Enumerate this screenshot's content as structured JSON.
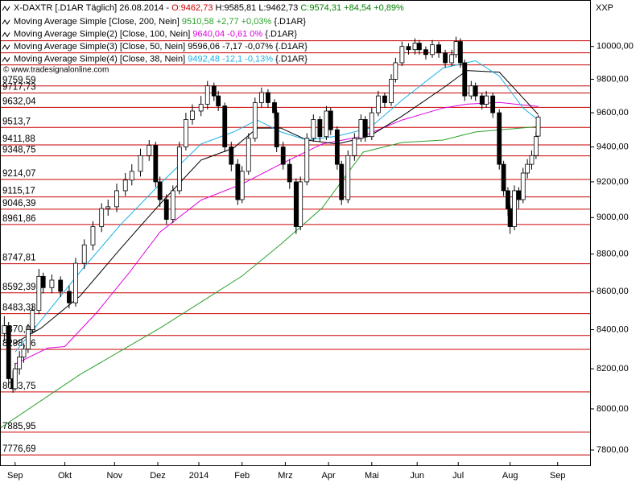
{
  "chart_data": {
    "type": "candlestick",
    "header": {
      "symbol": "X-DAXTR [.D1AR  Täglich] 26.08.2014 -",
      "open": "O:9462,73",
      "high_low": "H:9585,81 L:9462,73",
      "change": "C:9574,31 +84,54 +0,89%"
    },
    "watermark": "© www.tradesignalonline.com",
    "axis_code": "XXP",
    "legend_suffix": "{.D1AR}",
    "log_scale": true,
    "ylim": [
      7727,
      10290
    ],
    "yticks": [
      {
        "value": 7800,
        "label": "7800,00"
      },
      {
        "value": 8000,
        "label": "8000,00"
      },
      {
        "value": 8200,
        "label": "8200,00"
      },
      {
        "value": 8400,
        "label": "8400,00"
      },
      {
        "value": 8600,
        "label": "8600,00"
      },
      {
        "value": 8800,
        "label": "8800,00"
      },
      {
        "value": 9000,
        "label": "9000,00"
      },
      {
        "value": 9200,
        "label": "9200,00"
      },
      {
        "value": 9400,
        "label": "9400,00"
      },
      {
        "value": 9600,
        "label": "9600,00"
      },
      {
        "value": 9800,
        "label": "9800,00"
      },
      {
        "value": 10000,
        "label": "10000,00"
      }
    ],
    "xlim": [
      0,
      273
    ],
    "xticks": [
      {
        "value": 7,
        "label": "Sep"
      },
      {
        "value": 30,
        "label": "Okt"
      },
      {
        "value": 53,
        "label": "Nov"
      },
      {
        "value": 73,
        "label": "Dez"
      },
      {
        "value": 92,
        "label": "2014"
      },
      {
        "value": 112,
        "label": "Feb"
      },
      {
        "value": 132,
        "label": "Mrz"
      },
      {
        "value": 152,
        "label": "Apr"
      },
      {
        "value": 172,
        "label": "Mai"
      },
      {
        "value": 193,
        "label": "Jun"
      },
      {
        "value": 212,
        "label": "Jul"
      },
      {
        "value": 236,
        "label": "Aug"
      },
      {
        "value": 258,
        "label": "Sep"
      }
    ],
    "levels": [
      10035,
      9961,
      9887,
      9759.59,
      9717.73,
      9632.04,
      9513.7,
      9411.88,
      9348.75,
      9214.07,
      9115.17,
      9046.39,
      8961.86,
      8747.81,
      8592.39,
      8483.33,
      8370.03,
      8298.56,
      8083.75,
      7885.95,
      7776.69
    ],
    "level_labels": [
      null,
      null,
      null,
      "9759,59",
      "9717,73",
      "9632,04",
      "9513,7",
      "9411,88",
      "9348,75",
      "9214,07",
      "9115,17",
      "9046,39",
      "8961,86",
      "8747,81",
      "8592,39",
      "8483,33",
      "8370,03",
      "8298,56",
      "8083,75",
      "7885,95",
      "7776,69"
    ],
    "level_color": "#cc0000",
    "x": [
      2,
      4,
      6,
      7,
      9,
      11,
      13,
      15,
      18,
      20,
      24,
      28,
      32,
      35,
      39,
      43,
      47,
      50,
      54,
      58,
      61,
      65,
      69,
      72,
      74,
      77,
      80,
      83,
      86,
      89,
      93,
      96,
      99,
      101,
      104,
      107,
      110,
      112,
      115,
      118,
      121,
      124,
      127,
      128,
      131,
      134,
      137,
      139,
      142,
      145,
      148,
      151,
      153,
      156,
      158,
      161,
      164,
      167,
      169,
      172,
      175,
      178,
      181,
      183,
      186,
      189,
      192,
      194,
      197,
      200,
      203,
      206,
      209,
      211,
      213,
      215,
      218,
      220,
      223,
      225,
      228,
      231,
      233,
      235,
      236,
      238,
      240,
      242,
      244,
      246,
      248,
      249
    ],
    "open": [
      8380,
      8420,
      8150,
      8100,
      8200,
      8260,
      8300,
      8400,
      8500,
      8680,
      8620,
      8660,
      8600,
      8540,
      8750,
      8850,
      8950,
      9050,
      9060,
      9150,
      9210,
      9260,
      9350,
      9410,
      9200,
      9100,
      8990,
      9150,
      9400,
      9560,
      9610,
      9650,
      9760,
      9700,
      9640,
      9400,
      9300,
      9100,
      9260,
      9450,
      9660,
      9720,
      9660,
      9600,
      9400,
      9300,
      9200,
      8950,
      9200,
      9450,
      9560,
      9460,
      9610,
      9500,
      9300,
      9100,
      9350,
      9450,
      9560,
      9460,
      9600,
      9700,
      9660,
      9800,
      9900,
      10000,
      9980,
      10020,
      9980,
      9950,
      10010,
      9960,
      9900,
      9950,
      10030,
      9900,
      9700,
      9760,
      9700,
      9650,
      9700,
      9600,
      9300,
      9150,
      9050,
      8950,
      9150,
      9100,
      9250,
      9300,
      9350,
      9462.73
    ],
    "high": [
      8470,
      8440,
      8190,
      8230,
      8290,
      8330,
      8430,
      8530,
      8720,
      8700,
      8690,
      8680,
      8630,
      8780,
      8880,
      8980,
      9080,
      9100,
      9190,
      9250,
      9300,
      9390,
      9440,
      9430,
      9230,
      9130,
      9180,
      9430,
      9600,
      9650,
      9700,
      9790,
      9780,
      9730,
      9660,
      9430,
      9330,
      9290,
      9480,
      9690,
      9750,
      9740,
      9680,
      9620,
      9430,
      9330,
      9220,
      9230,
      9480,
      9590,
      9580,
      9640,
      9630,
      9520,
      9320,
      9380,
      9480,
      9590,
      9580,
      9630,
      9730,
      9720,
      9830,
      9930,
      10030,
      10020,
      10050,
      10040,
      10000,
      10040,
      10030,
      9980,
      9980,
      10060,
      10050,
      9920,
      9790,
      9780,
      9720,
      9730,
      9720,
      9620,
      9320,
      9170,
      9070,
      9180,
      9170,
      9280,
      9330,
      9380,
      9490,
      9585.81
    ],
    "low": [
      8340,
      8120,
      8080,
      8090,
      8170,
      8230,
      8280,
      8380,
      8480,
      8590,
      8590,
      8570,
      8510,
      8520,
      8720,
      8820,
      8920,
      9010,
      9030,
      9120,
      9180,
      9230,
      9320,
      9170,
      9060,
      8960,
      8970,
      9130,
      9380,
      9530,
      9580,
      9620,
      9670,
      9610,
      9370,
      9260,
      9070,
      9080,
      9240,
      9430,
      9630,
      9630,
      9570,
      9370,
      9270,
      9160,
      8910,
      8930,
      9180,
      9430,
      9430,
      9440,
      9470,
      9270,
      9070,
      9080,
      9320,
      9430,
      9430,
      9440,
      9580,
      9630,
      9640,
      9780,
      9880,
      9950,
      9950,
      9950,
      9920,
      9930,
      9930,
      9870,
      9880,
      9930,
      9870,
      9670,
      9680,
      9670,
      9620,
      9630,
      9570,
      9270,
      9120,
      9010,
      8910,
      8930,
      9050,
      9080,
      9220,
      9270,
      9330,
      9462.73
    ],
    "close": [
      8420,
      8150,
      8100,
      8200,
      8260,
      8300,
      8400,
      8500,
      8680,
      8620,
      8660,
      8600,
      8540,
      8750,
      8850,
      8950,
      9050,
      9060,
      9150,
      9210,
      9260,
      9350,
      9410,
      9200,
      9100,
      8990,
      9150,
      9400,
      9560,
      9610,
      9650,
      9760,
      9700,
      9640,
      9400,
      9300,
      9100,
      9260,
      9450,
      9660,
      9720,
      9660,
      9600,
      9400,
      9300,
      9200,
      8950,
      9200,
      9450,
      9560,
      9460,
      9610,
      9500,
      9300,
      9100,
      9350,
      9450,
      9560,
      9460,
      9600,
      9700,
      9660,
      9800,
      9900,
      10000,
      9980,
      10020,
      9980,
      9950,
      10010,
      9960,
      9900,
      9950,
      10030,
      9900,
      9700,
      9760,
      9700,
      9650,
      9700,
      9600,
      9300,
      9150,
      9050,
      8950,
      9150,
      9100,
      9250,
      9300,
      9350,
      9460,
      9574.31
    ],
    "series": [
      {
        "name": "Moving Average Simple [Close, 200, Nein]",
        "value_label": "9510,58 +2,77 +0,03%",
        "color": "#2ca02c",
        "x": [
          0,
          37,
          74,
          112,
          130,
          149,
          168,
          186,
          205,
          220,
          249
        ],
        "values": [
          7905,
          8171,
          8408,
          8682,
          8854,
          9053,
          9370,
          9426,
          9440,
          9487,
          9519
        ]
      },
      {
        "name": "Moving Average Simple(2) [Close, 100, Nein]",
        "value_label": "9640,04 -0,61 0%",
        "color": "#e000e0",
        "x": [
          7,
          22,
          30,
          45,
          60,
          74,
          93,
          112,
          130,
          149,
          168,
          186,
          205,
          216,
          231,
          249
        ],
        "values": [
          8224,
          8305,
          8313,
          8492,
          8703,
          8920,
          9097,
          9188,
          9302,
          9417,
          9463,
          9557,
          9628,
          9651,
          9661,
          9637
        ]
      },
      {
        "name": "Moving Average Simple(3) [Close, 50, Nein]",
        "value_label": "9596,06 -7,17 -0,07%",
        "color": "#000000",
        "x": [
          6,
          19,
          37,
          56,
          74,
          93,
          108,
          119,
          130,
          142,
          156,
          171,
          186,
          205,
          216,
          231,
          249
        ],
        "values": [
          8325,
          8408,
          8575,
          8833,
          9075,
          9324,
          9393,
          9510,
          9510,
          9440,
          9417,
          9463,
          9580,
          9747,
          9853,
          9843,
          9590
        ]
      },
      {
        "name": "Moving Average Simple(4) [Close, 38, Nein]",
        "value_label": "9492,48 -12,1 -0,13%",
        "color": "#1ab0e8",
        "x": [
          7,
          19,
          37,
          56,
          74,
          93,
          108,
          119,
          130,
          142,
          156,
          171,
          186,
          205,
          220,
          231,
          242,
          249
        ],
        "values": [
          8285,
          8449,
          8703,
          8964,
          9188,
          9417,
          9487,
          9557,
          9487,
          9440,
          9463,
          9510,
          9675,
          9868,
          9912,
          9819,
          9628,
          9557
        ]
      }
    ]
  }
}
